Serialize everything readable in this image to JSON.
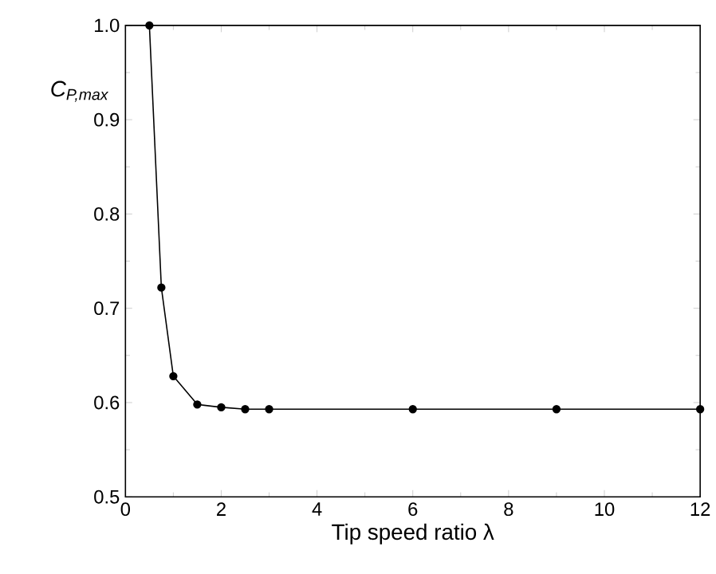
{
  "chart_data": {
    "type": "line",
    "xlabel": "Tip speed ratio λ",
    "ylabel": "C$_{P,max}$",
    "x": [
      0.5,
      0.75,
      1,
      1.5,
      2,
      2.5,
      3,
      6,
      9,
      12
    ],
    "series": [
      {
        "color": "#000000",
        "values": [
          1.0,
          0.722,
          0.628,
          0.598,
          0.595,
          0.593,
          0.593,
          0.593,
          0.593,
          0.593
        ]
      }
    ],
    "xlim": [
      0,
      12
    ],
    "xticks": [
      0,
      2,
      4,
      6,
      8,
      10,
      12
    ],
    "ylim": [
      0.5,
      1.0
    ],
    "yticks": [
      0.5,
      0.6,
      0.7,
      0.8,
      0.9,
      {
        "value": 1,
        "label": "1.0"
      }
    ],
    "marker": "circle",
    "line_style": "solid",
    "grid": false
  }
}
